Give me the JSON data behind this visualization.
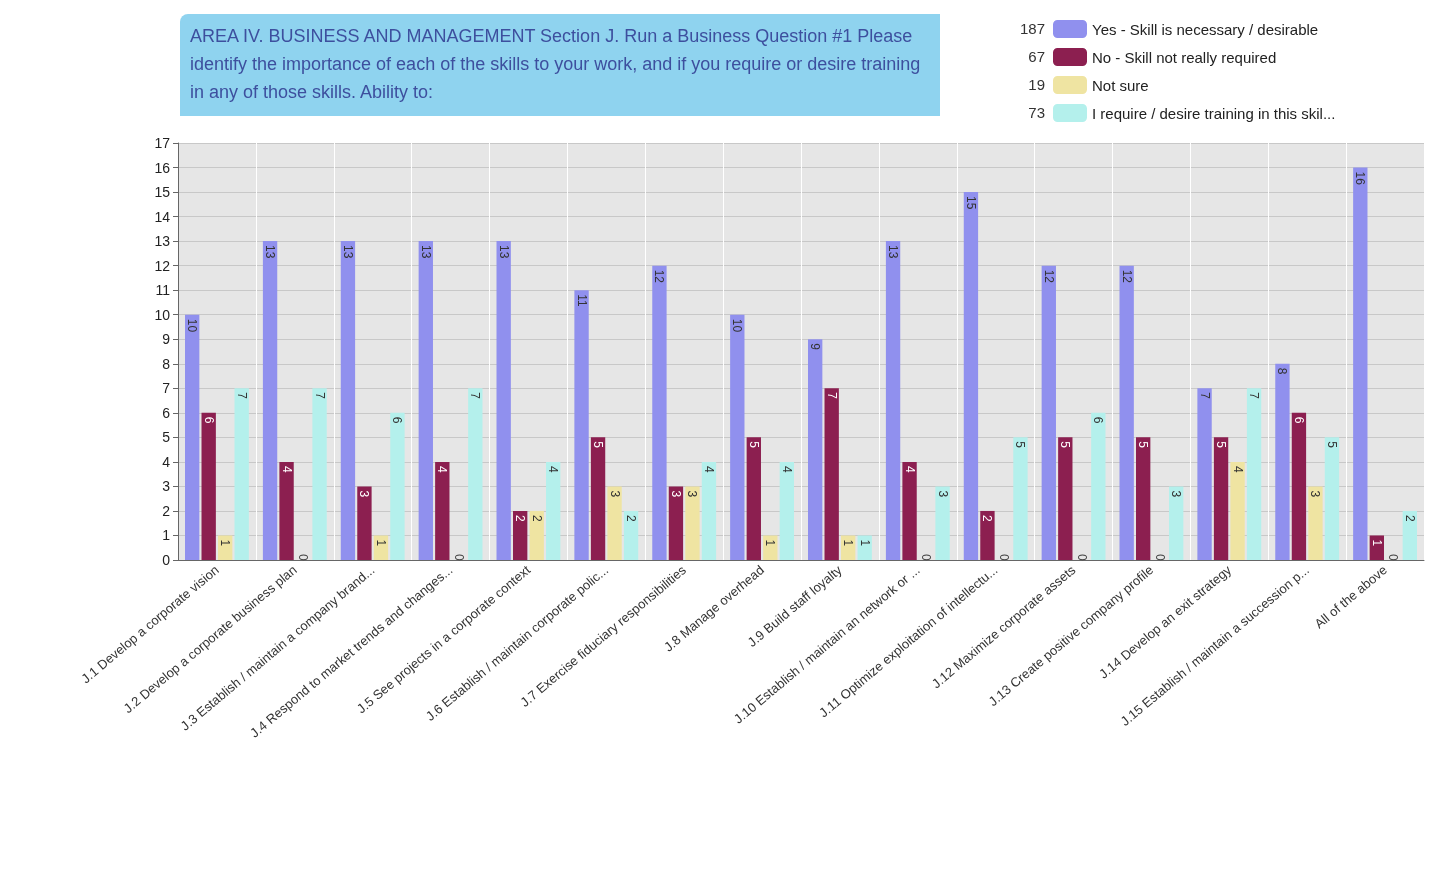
{
  "chart_data": {
    "type": "bar",
    "title": "AREA IV. BUSINESS AND MANAGEMENT Section J. Run a Business Question #1 Please identify the importance of each of the skills to your work, and if you require or desire training in any of those skills. Ability to:",
    "categories": [
      "J.1 Develop a corporate vision",
      "J.2 Develop a corporate business plan",
      "J.3 Establish / maintain a company brand...",
      "J.4 Respond to market trends and changes...",
      "J.5 See projects in a corporate context",
      "J.6 Establish / maintain corporate polic...",
      "J.7 Exercise fiduciary responsibilities",
      "J.8 Manage overhead",
      "J.9 Build staff loyalty",
      "J.10 Establish / maintain an network or ...",
      "J.11 Optimize exploitation of intellectu...",
      "J.12 Maximize corporate assets",
      "J.13 Create positive company profile",
      "J.14 Develop an exit strategy",
      "J.15 Establish / maintain a succession p...",
      "All of the above"
    ],
    "series": [
      {
        "name": "Yes - Skill is necessary / desirable",
        "color": "#9090ee",
        "values": [
          10,
          13,
          13,
          13,
          13,
          11,
          12,
          10,
          9,
          13,
          15,
          12,
          12,
          7,
          8,
          16
        ]
      },
      {
        "name": "No - Skill not really required",
        "color": "#8c1f50",
        "values": [
          6,
          4,
          3,
          4,
          2,
          5,
          3,
          5,
          7,
          4,
          2,
          5,
          5,
          5,
          6,
          1
        ]
      },
      {
        "name": "Not sure",
        "color": "#efe4a2",
        "values": [
          1,
          0,
          1,
          0,
          2,
          3,
          3,
          1,
          1,
          0,
          0,
          0,
          0,
          4,
          3,
          0
        ]
      },
      {
        "name": "I require / desire training in this skil...",
        "color": "#b4f0ec",
        "values": [
          7,
          7,
          6,
          7,
          4,
          2,
          4,
          4,
          1,
          3,
          5,
          6,
          3,
          7,
          5,
          2
        ]
      }
    ],
    "annotations": [
      "187",
      "67",
      "19",
      "73"
    ],
    "ylim": [
      0,
      17
    ],
    "yticks": [
      0,
      1,
      2,
      3,
      4,
      5,
      6,
      7,
      8,
      9,
      10,
      11,
      12,
      13,
      14,
      15,
      16,
      17
    ],
    "grid": true,
    "legend": "top right",
    "data_labels": true
  }
}
